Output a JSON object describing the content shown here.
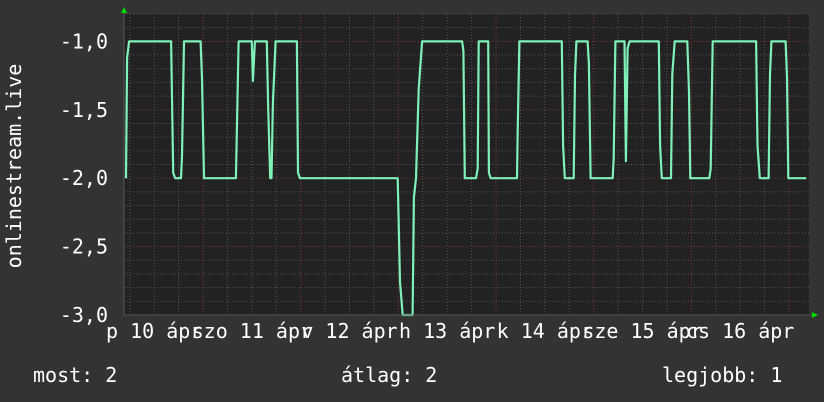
{
  "chart_data": {
    "type": "line",
    "title": "",
    "ylabel": "onlinestream.live",
    "xlabel": "",
    "xlim": [
      "04-10 04:35",
      "04-17 04:55"
    ],
    "ylim": [
      -3.0,
      -0.8
    ],
    "y_ticks": [
      -1.0,
      -1.5,
      -2.0,
      -2.5,
      -3.0
    ],
    "y_tick_labels": [
      "-1,0",
      "-1,5",
      "-2,0",
      "-2,5",
      "-3,0"
    ],
    "x_tick_labels": [
      {
        "at": "04-10 12:00",
        "label": "p 10 ápr"
      },
      {
        "at": "04-11 12:00",
        "label": "szo 11 ápr"
      },
      {
        "at": "04-12 12:00",
        "label": "v 12 ápr"
      },
      {
        "at": "04-13 12:00",
        "label": "h 13 ápr"
      },
      {
        "at": "04-14 12:00",
        "label": "k 14 ápr"
      },
      {
        "at": "04-15 12:00",
        "label": "sze 15 ápr"
      },
      {
        "at": "04-16 12:00",
        "label": "cs 16 ápr"
      }
    ],
    "grid": true,
    "colors": {
      "background": "#333333",
      "plot_background": "#222222",
      "line": "#7ff0b8",
      "major_grid": "#7a3a3a",
      "minor_grid": "#555555",
      "arrow": "#00dd00"
    },
    "series": [
      {
        "points": [
          [
            "04-10 05:05",
            -2.0
          ],
          [
            "04-10 05:20",
            -1.12
          ],
          [
            "04-10 05:50",
            -1.0
          ],
          [
            "04-10 16:10",
            -1.0
          ],
          [
            "04-10 16:40",
            -1.96
          ],
          [
            "04-10 17:10",
            -2.0
          ],
          [
            "04-10 18:35",
            -2.0
          ],
          [
            "04-10 18:50",
            -1.84
          ],
          [
            "04-10 19:20",
            -1.0
          ],
          [
            "04-10 23:25",
            -1.0
          ],
          [
            "04-10 23:45",
            -1.27
          ],
          [
            "04-11 00:15",
            -2.0
          ],
          [
            "04-11 08:05",
            -2.0
          ],
          [
            "04-11 08:20",
            -1.64
          ],
          [
            "04-11 08:45",
            -1.0
          ],
          [
            "04-11 12:00",
            -1.0
          ],
          [
            "04-11 12:15",
            -1.29
          ],
          [
            "04-11 12:45",
            -1.0
          ],
          [
            "04-11 15:40",
            -1.0
          ],
          [
            "04-11 16:00",
            -1.46
          ],
          [
            "04-11 16:30",
            -2.0
          ],
          [
            "04-11 16:50",
            -2.0
          ],
          [
            "04-11 17:10",
            -1.45
          ],
          [
            "04-11 17:50",
            -1.0
          ],
          [
            "04-11 23:05",
            -1.0
          ],
          [
            "04-11 23:20",
            -1.96
          ],
          [
            "04-11 23:50",
            -2.0
          ],
          [
            "04-12 23:50",
            -2.0
          ],
          [
            "04-13 00:25",
            -2.76
          ],
          [
            "04-13 00:50",
            -2.91
          ],
          [
            "04-13 01:05",
            -3.0
          ],
          [
            "04-13 03:30",
            -3.0
          ],
          [
            "04-13 03:50",
            -2.14
          ],
          [
            "04-13 04:20",
            -2.0
          ],
          [
            "04-13 05:00",
            -1.35
          ],
          [
            "04-13 05:50",
            -1.0
          ],
          [
            "04-13 15:40",
            -1.0
          ],
          [
            "04-13 16:00",
            -1.07
          ],
          [
            "04-13 16:20",
            -2.0
          ],
          [
            "04-13 19:05",
            -2.0
          ],
          [
            "04-13 19:30",
            -1.93
          ],
          [
            "04-13 19:45",
            -1.0
          ],
          [
            "04-13 22:05",
            -1.0
          ],
          [
            "04-13 22:15",
            -1.96
          ],
          [
            "04-13 22:40",
            -2.0
          ],
          [
            "04-14 05:10",
            -2.0
          ],
          [
            "04-14 05:20",
            -1.65
          ],
          [
            "04-14 05:45",
            -1.0
          ],
          [
            "04-14 16:10",
            -1.0
          ],
          [
            "04-14 16:30",
            -1.76
          ],
          [
            "04-14 16:55",
            -2.0
          ],
          [
            "04-14 19:05",
            -2.0
          ],
          [
            "04-14 19:25",
            -1.25
          ],
          [
            "04-14 19:45",
            -1.0
          ],
          [
            "04-14 22:30",
            -1.0
          ],
          [
            "04-14 22:50",
            -1.16
          ],
          [
            "04-14 23:15",
            -2.0
          ],
          [
            "04-15 04:40",
            -2.0
          ],
          [
            "04-15 04:55",
            -1.85
          ],
          [
            "04-15 05:20",
            -1.0
          ],
          [
            "04-15 07:35",
            -1.0
          ],
          [
            "04-15 07:55",
            -1.875
          ],
          [
            "04-15 08:20",
            -1.05
          ],
          [
            "04-15 08:50",
            -1.0
          ],
          [
            "04-15 16:00",
            -1.0
          ],
          [
            "04-15 16:20",
            -1.76
          ],
          [
            "04-15 16:45",
            -2.0
          ],
          [
            "04-15 19:00",
            -2.0
          ],
          [
            "04-15 19:20",
            -1.24
          ],
          [
            "04-15 19:55",
            -1.0
          ],
          [
            "04-15 23:00",
            -1.0
          ],
          [
            "04-15 23:25",
            -1.37
          ],
          [
            "04-15 23:45",
            -2.0
          ],
          [
            "04-16 04:25",
            -2.0
          ],
          [
            "04-16 04:45",
            -1.93
          ],
          [
            "04-16 05:15",
            -1.0
          ],
          [
            "04-16 15:55",
            -1.0
          ],
          [
            "04-16 16:15",
            -1.76
          ],
          [
            "04-16 16:50",
            -2.0
          ],
          [
            "04-16 19:00",
            -2.0
          ],
          [
            "04-16 19:20",
            -1.24
          ],
          [
            "04-16 19:40",
            -1.0
          ],
          [
            "04-16 23:10",
            -1.0
          ],
          [
            "04-16 23:30",
            -1.26
          ],
          [
            "04-16 23:50",
            -2.0
          ],
          [
            "04-17 04:15",
            -2.0
          ]
        ]
      }
    ]
  },
  "footer": {
    "current": "most: 2",
    "average": "átlag: 2",
    "best": "legjobb: 1"
  }
}
